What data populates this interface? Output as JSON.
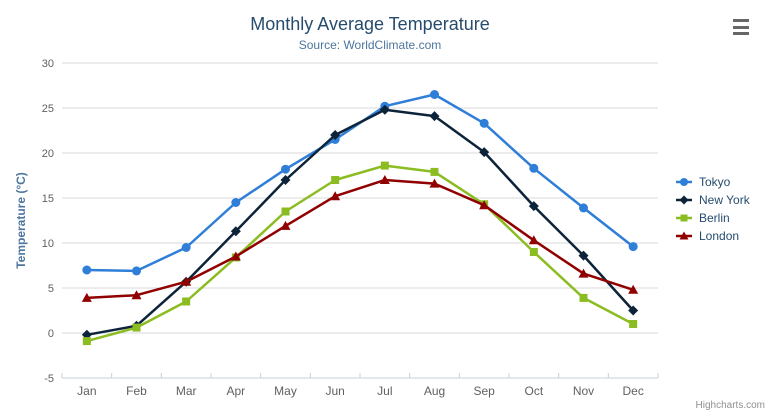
{
  "header": {
    "title": "Monthly Average Temperature",
    "subtitle": "Source: WorldClimate.com"
  },
  "toolbar": {
    "menu_icon": "hamburger-menu-icon"
  },
  "credits": {
    "label": "Highcharts.com"
  },
  "colors": {
    "title": "#274b6d",
    "subtitle": "#4d759e",
    "axis_label": "#606060",
    "axis_title": "#4d759e",
    "grid": "#d8d8d8",
    "axis_line": "#c0d0e0",
    "legend_text": "#274b6d",
    "credits": "#909090",
    "menu_icon": "#666666"
  },
  "chart_data": {
    "type": "line",
    "title": "Monthly Average Temperature",
    "subtitle": "Source: WorldClimate.com",
    "categories": [
      "Jan",
      "Feb",
      "Mar",
      "Apr",
      "May",
      "Jun",
      "Jul",
      "Aug",
      "Sep",
      "Oct",
      "Nov",
      "Dec"
    ],
    "xlabel": "",
    "ylabel": "Temperature (°C)",
    "ylim": [
      -5,
      30
    ],
    "ytick_interval": 5,
    "grid": true,
    "legend_position": "right",
    "series": [
      {
        "name": "Tokyo",
        "color": "#2f7ed8",
        "marker": "circle",
        "values": [
          7.0,
          6.9,
          9.5,
          14.5,
          18.2,
          21.5,
          25.2,
          26.5,
          23.3,
          18.3,
          13.9,
          9.6
        ]
      },
      {
        "name": "New York",
        "color": "#0d233a",
        "marker": "diamond",
        "values": [
          -0.2,
          0.8,
          5.7,
          11.3,
          17.0,
          22.0,
          24.8,
          24.1,
          20.1,
          14.1,
          8.6,
          2.5
        ]
      },
      {
        "name": "Berlin",
        "color": "#8bbc21",
        "marker": "square",
        "values": [
          -0.9,
          0.6,
          3.5,
          8.4,
          13.5,
          17.0,
          18.6,
          17.9,
          14.3,
          9.0,
          3.9,
          1.0
        ]
      },
      {
        "name": "London",
        "color": "#910000",
        "marker": "triangle",
        "values": [
          3.9,
          4.2,
          5.7,
          8.5,
          11.9,
          15.2,
          17.0,
          16.6,
          14.2,
          10.3,
          6.6,
          4.8
        ]
      }
    ]
  }
}
